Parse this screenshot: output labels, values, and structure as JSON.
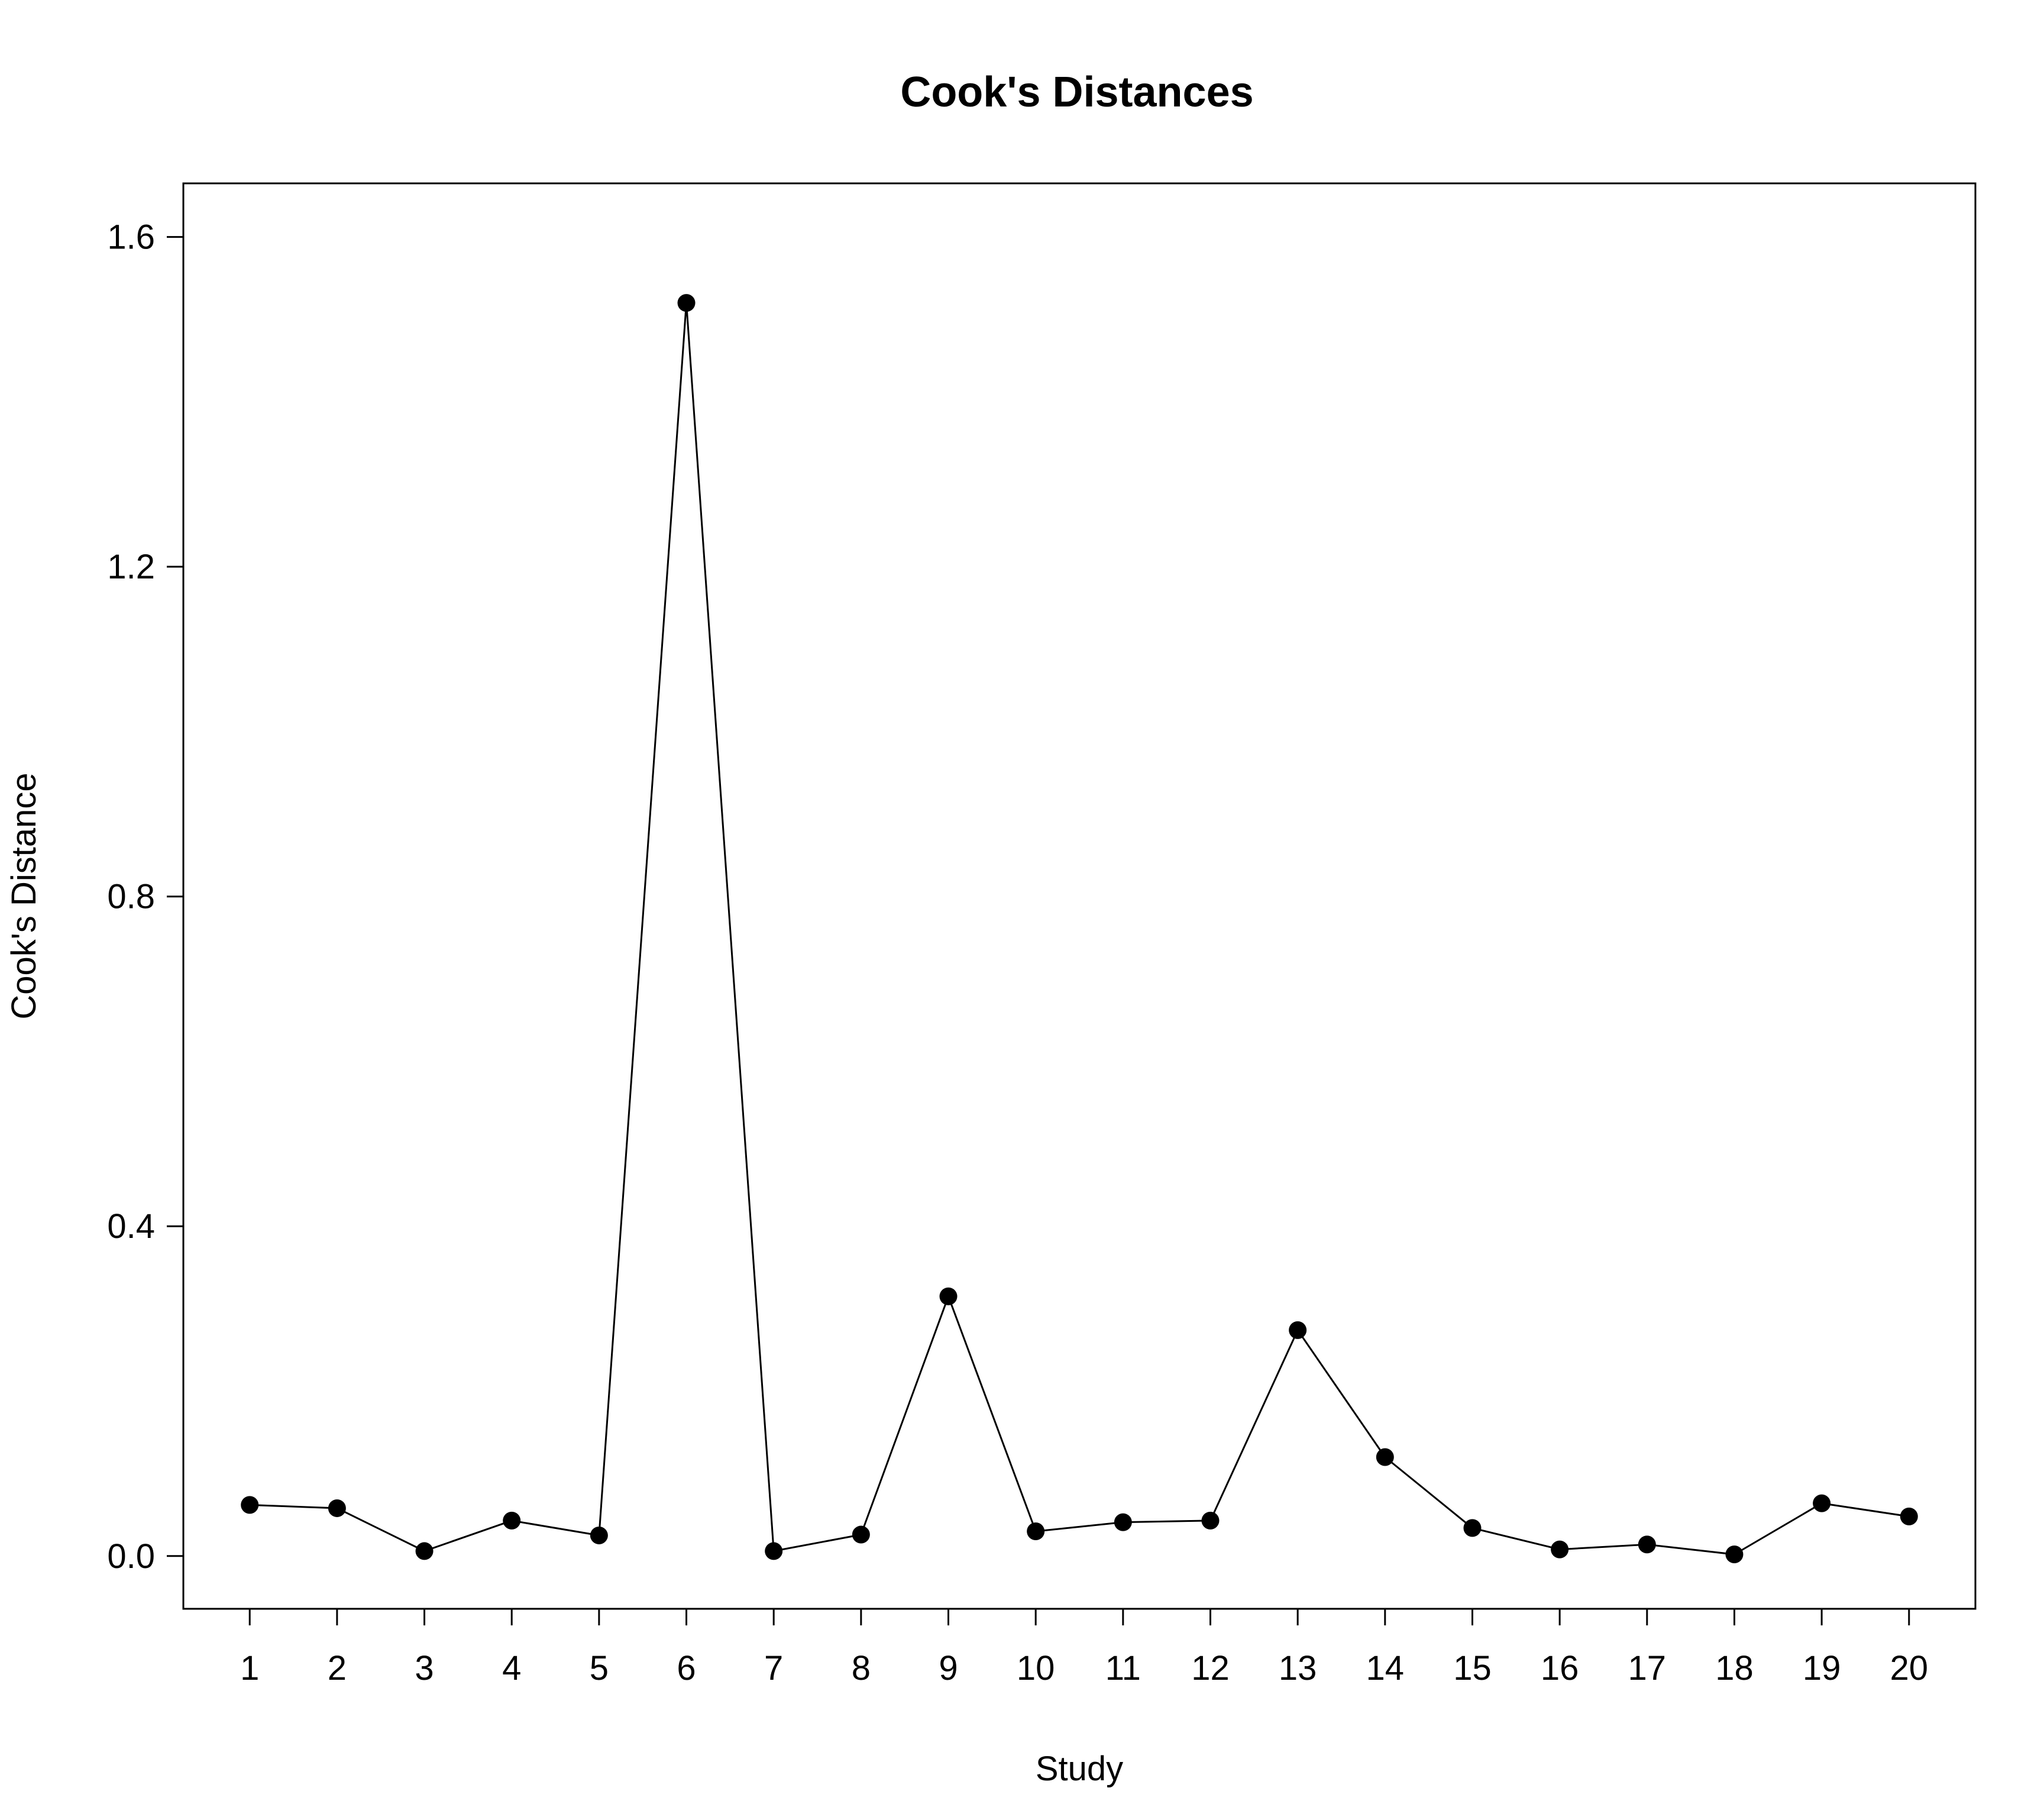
{
  "chart_data": {
    "type": "line",
    "title": "Cook's Distances",
    "xlabel": "Study",
    "ylabel": "Cook's Distance",
    "x": [
      1,
      2,
      3,
      4,
      5,
      6,
      7,
      8,
      9,
      10,
      11,
      12,
      13,
      14,
      15,
      16,
      17,
      18,
      19,
      20
    ],
    "x_tick_labels": [
      "1",
      "2",
      "3",
      "4",
      "5",
      "6",
      "7",
      "8",
      "9",
      "10",
      "11",
      "12",
      "13",
      "14",
      "15",
      "16",
      "17",
      "18",
      "19",
      "20"
    ],
    "y_ticks": [
      0.0,
      0.4,
      0.8,
      1.2,
      1.6
    ],
    "y_tick_labels": [
      "0.0",
      "0.4",
      "0.8",
      "1.2",
      "1.6"
    ],
    "series": [
      {
        "values": [
          0.062,
          0.058,
          0.006,
          0.043,
          0.025,
          1.52,
          0.006,
          0.026,
          0.315,
          0.03,
          0.041,
          0.043,
          0.274,
          0.12,
          0.034,
          0.008,
          0.014,
          0.002,
          0.064,
          0.048
        ],
        "color": "#000000",
        "marker": "filled-circle"
      }
    ],
    "xlim": [
      0.24,
      20.76
    ],
    "ylim": [
      -0.064,
      1.665
    ],
    "grid": false,
    "legend": "none"
  }
}
